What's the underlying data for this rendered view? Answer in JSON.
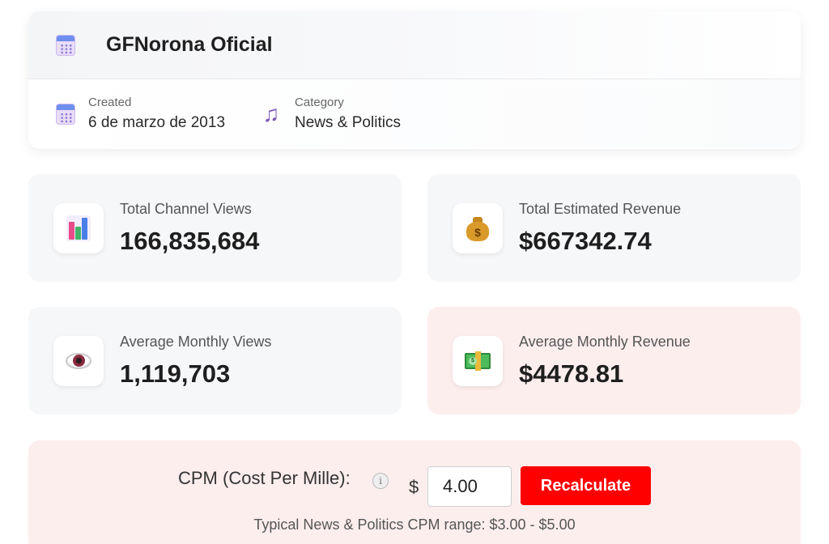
{
  "channel": {
    "title": "GFNorona Oficial",
    "created_label": "Created",
    "created_value": "6 de marzo de 2013",
    "category_label": "Category",
    "category_value": "News & Politics"
  },
  "stats": [
    {
      "label": "Total Channel Views",
      "value": "166,835,684",
      "icon": "bar-chart-icon"
    },
    {
      "label": "Total Estimated Revenue",
      "value": "$667342.74",
      "icon": "money-bag-icon"
    },
    {
      "label": "Average Monthly Views",
      "value": "1,119,703",
      "icon": "eye-icon"
    },
    {
      "label": "Average Monthly Revenue",
      "value": "$4478.81",
      "icon": "cash-icon"
    }
  ],
  "cpm": {
    "label": "CPM (Cost Per Mille):",
    "info_symbol": "i",
    "currency": "$",
    "value": "4.00",
    "button_label": "Recalculate",
    "note": "Typical News & Politics CPM range: $3.00 - $5.00"
  },
  "colors": {
    "accent": "#ff0000",
    "card_bg": "#f6f7f9",
    "highlight_bg": "#fdeeee"
  }
}
